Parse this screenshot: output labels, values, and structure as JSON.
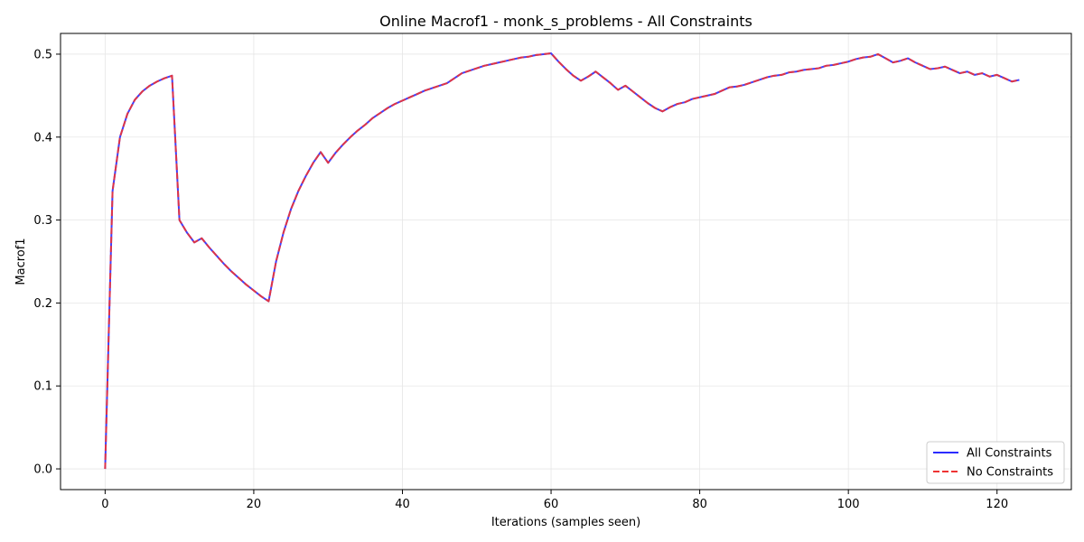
{
  "chart_data": {
    "type": "line",
    "title": "Online Macrof1 - monk_s_problems - All Constraints",
    "xlabel": "Iterations (samples seen)",
    "ylabel": "Macrof1",
    "xlim": [
      -6,
      130
    ],
    "ylim": [
      -0.025,
      0.525
    ],
    "xticks": [
      0,
      20,
      40,
      60,
      80,
      100,
      120
    ],
    "yticks": [
      0.0,
      0.1,
      0.2,
      0.3,
      0.4,
      0.5
    ],
    "grid": true,
    "legend_position": "lower-right",
    "series": [
      {
        "name": "All Constraints",
        "color": "#2b2bff",
        "style": "solid",
        "x": [
          0,
          1,
          2,
          3,
          4,
          5,
          6,
          7,
          8,
          9,
          10,
          11,
          12,
          13,
          14,
          15,
          16,
          17,
          18,
          19,
          20,
          21,
          22,
          23,
          24,
          25,
          26,
          27,
          28,
          29,
          30,
          31,
          32,
          33,
          34,
          35,
          36,
          37,
          38,
          39,
          40,
          41,
          42,
          43,
          44,
          45,
          46,
          47,
          48,
          49,
          50,
          51,
          52,
          53,
          54,
          55,
          56,
          57,
          58,
          59,
          60,
          61,
          62,
          63,
          64,
          65,
          66,
          67,
          68,
          69,
          70,
          71,
          72,
          73,
          74,
          75,
          76,
          77,
          78,
          79,
          80,
          81,
          82,
          83,
          84,
          85,
          86,
          87,
          88,
          89,
          90,
          91,
          92,
          93,
          94,
          95,
          96,
          97,
          98,
          99,
          100,
          101,
          102,
          103,
          104,
          105,
          106,
          107,
          108,
          109,
          110,
          111,
          112,
          113,
          114,
          115,
          116,
          117,
          118,
          119,
          120,
          121,
          122,
          123
        ],
        "y": [
          0.0,
          0.335,
          0.4,
          0.428,
          0.445,
          0.455,
          0.462,
          0.467,
          0.471,
          0.474,
          0.3,
          0.285,
          0.273,
          0.278,
          0.267,
          0.257,
          0.247,
          0.238,
          0.23,
          0.222,
          0.215,
          0.208,
          0.202,
          0.25,
          0.285,
          0.313,
          0.335,
          0.353,
          0.369,
          0.382,
          0.369,
          0.381,
          0.391,
          0.4,
          0.408,
          0.415,
          0.423,
          0.429,
          0.435,
          0.44,
          0.444,
          0.448,
          0.452,
          0.456,
          0.459,
          0.462,
          0.465,
          0.471,
          0.477,
          0.48,
          0.483,
          0.486,
          0.488,
          0.49,
          0.492,
          0.494,
          0.496,
          0.497,
          0.499,
          0.5,
          0.501,
          0.491,
          0.482,
          0.474,
          0.468,
          0.473,
          0.479,
          0.472,
          0.465,
          0.457,
          0.462,
          0.455,
          0.448,
          0.441,
          0.435,
          0.431,
          0.436,
          0.44,
          0.442,
          0.446,
          0.448,
          0.45,
          0.452,
          0.456,
          0.46,
          0.461,
          0.463,
          0.466,
          0.469,
          0.472,
          0.474,
          0.475,
          0.478,
          0.479,
          0.481,
          0.482,
          0.483,
          0.486,
          0.487,
          0.489,
          0.491,
          0.494,
          0.496,
          0.497,
          0.5,
          0.495,
          0.49,
          0.492,
          0.495,
          0.49,
          0.486,
          0.482,
          0.483,
          0.485,
          0.481,
          0.477,
          0.479,
          0.475,
          0.477,
          0.473,
          0.475,
          0.471,
          0.467,
          0.469
        ]
      },
      {
        "name": "No Constraints",
        "color": "#ee3333",
        "style": "dashed",
        "x": [
          0,
          1,
          2,
          3,
          4,
          5,
          6,
          7,
          8,
          9,
          10,
          11,
          12,
          13,
          14,
          15,
          16,
          17,
          18,
          19,
          20,
          21,
          22,
          23,
          24,
          25,
          26,
          27,
          28,
          29,
          30,
          31,
          32,
          33,
          34,
          35,
          36,
          37,
          38,
          39,
          40,
          41,
          42,
          43,
          44,
          45,
          46,
          47,
          48,
          49,
          50,
          51,
          52,
          53,
          54,
          55,
          56,
          57,
          58,
          59,
          60,
          61,
          62,
          63,
          64,
          65,
          66,
          67,
          68,
          69,
          70,
          71,
          72,
          73,
          74,
          75,
          76,
          77,
          78,
          79,
          80,
          81,
          82,
          83,
          84,
          85,
          86,
          87,
          88,
          89,
          90,
          91,
          92,
          93,
          94,
          95,
          96,
          97,
          98,
          99,
          100,
          101,
          102,
          103,
          104,
          105,
          106,
          107,
          108,
          109,
          110,
          111,
          112,
          113,
          114,
          115,
          116,
          117,
          118,
          119,
          120,
          121,
          122,
          123
        ],
        "y": [
          0.0,
          0.335,
          0.4,
          0.428,
          0.445,
          0.455,
          0.462,
          0.467,
          0.471,
          0.474,
          0.3,
          0.285,
          0.273,
          0.278,
          0.267,
          0.257,
          0.247,
          0.238,
          0.23,
          0.222,
          0.215,
          0.208,
          0.202,
          0.25,
          0.285,
          0.313,
          0.335,
          0.353,
          0.369,
          0.382,
          0.369,
          0.381,
          0.391,
          0.4,
          0.408,
          0.415,
          0.423,
          0.429,
          0.435,
          0.44,
          0.444,
          0.448,
          0.452,
          0.456,
          0.459,
          0.462,
          0.465,
          0.471,
          0.477,
          0.48,
          0.483,
          0.486,
          0.488,
          0.49,
          0.492,
          0.494,
          0.496,
          0.497,
          0.499,
          0.5,
          0.501,
          0.491,
          0.482,
          0.474,
          0.468,
          0.473,
          0.479,
          0.472,
          0.465,
          0.457,
          0.462,
          0.455,
          0.448,
          0.441,
          0.435,
          0.431,
          0.436,
          0.44,
          0.442,
          0.446,
          0.448,
          0.45,
          0.452,
          0.456,
          0.46,
          0.461,
          0.463,
          0.466,
          0.469,
          0.472,
          0.474,
          0.475,
          0.478,
          0.479,
          0.481,
          0.482,
          0.483,
          0.486,
          0.487,
          0.489,
          0.491,
          0.494,
          0.496,
          0.497,
          0.5,
          0.495,
          0.49,
          0.492,
          0.495,
          0.49,
          0.486,
          0.482,
          0.483,
          0.485,
          0.481,
          0.477,
          0.479,
          0.475,
          0.477,
          0.473,
          0.475,
          0.471,
          0.467,
          0.469
        ]
      }
    ]
  }
}
